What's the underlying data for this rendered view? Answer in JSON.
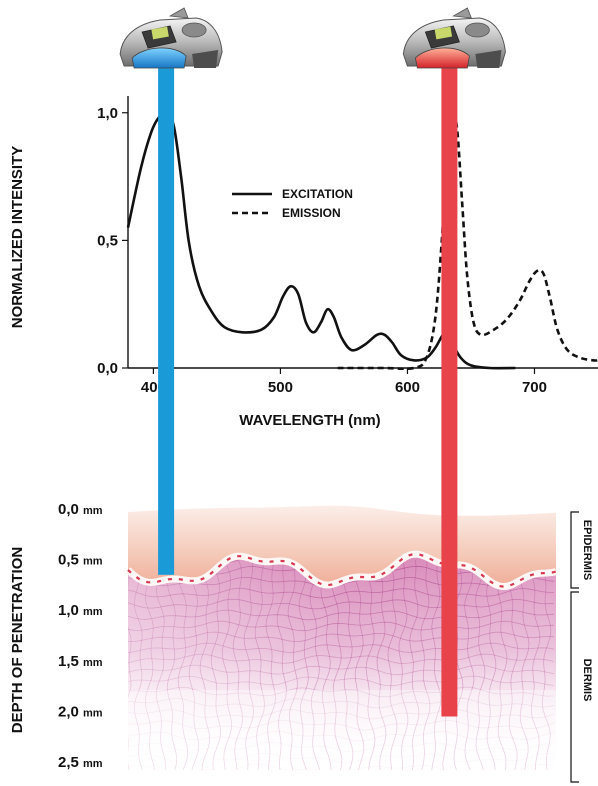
{
  "chart_data": [
    {
      "type": "line",
      "xlabel": "WAVELENGTH (nm)",
      "ylabel": "NORMALIZED INTENSITY",
      "xlim": [
        380,
        750
      ],
      "ylim": [
        0,
        1.05
      ],
      "x_ticks": [
        "400",
        "500",
        "600",
        "700"
      ],
      "y_ticks": [
        "0,0",
        "0,5",
        "1,0"
      ],
      "legend_position": "upper-middle",
      "series": [
        {
          "name": "EXCITATION",
          "style": "solid",
          "x": [
            380,
            390,
            398,
            404,
            410,
            416,
            422,
            428,
            436,
            446,
            456,
            470,
            485,
            495,
            502,
            508,
            514,
            520,
            526,
            532,
            537,
            542,
            548,
            556,
            566,
            576,
            582,
            588,
            595,
            605,
            615,
            622,
            628,
            632,
            636,
            642,
            650,
            665,
            685
          ],
          "y": [
            0.55,
            0.78,
            0.92,
            0.98,
            1.0,
            0.95,
            0.74,
            0.49,
            0.32,
            0.22,
            0.16,
            0.14,
            0.15,
            0.2,
            0.28,
            0.32,
            0.29,
            0.18,
            0.14,
            0.18,
            0.23,
            0.2,
            0.12,
            0.07,
            0.09,
            0.13,
            0.13,
            0.1,
            0.05,
            0.03,
            0.04,
            0.08,
            0.13,
            0.13,
            0.09,
            0.04,
            0.01,
            0.0,
            0.0
          ]
        },
        {
          "name": "EMISSION",
          "style": "dashed",
          "x": [
            545,
            580,
            605,
            615,
            622,
            627,
            631,
            635,
            639,
            643,
            647,
            652,
            658,
            668,
            678,
            688,
            696,
            702,
            707,
            712,
            718,
            726,
            736,
            746,
            750
          ],
          "y": [
            0.0,
            0.0,
            0.0,
            0.04,
            0.2,
            0.5,
            0.82,
            0.99,
            0.94,
            0.65,
            0.36,
            0.18,
            0.13,
            0.15,
            0.19,
            0.26,
            0.34,
            0.38,
            0.37,
            0.28,
            0.15,
            0.07,
            0.04,
            0.03,
            0.03
          ]
        }
      ],
      "highlight_bands": [
        {
          "name": "blue-light",
          "x": 410,
          "color": "#1a9ad7"
        },
        {
          "name": "red-light",
          "x": 633,
          "color": "#e8434a"
        }
      ]
    },
    {
      "type": "diagram",
      "ylabel": "DEPTH OF PENETRATION",
      "y_ticks": [
        {
          "value": "0,0",
          "unit": "mm",
          "depth": 0.0
        },
        {
          "value": "0,5",
          "unit": "mm",
          "depth": 0.5
        },
        {
          "value": "1,0",
          "unit": "mm",
          "depth": 1.0
        },
        {
          "value": "1,5",
          "unit": "mm",
          "depth": 1.5
        },
        {
          "value": "2,0",
          "unit": "mm",
          "depth": 2.0
        },
        {
          "value": "2,5",
          "unit": "mm",
          "depth": 2.5
        }
      ],
      "layers": [
        "EPIDERMIS",
        "DERMIS"
      ],
      "penetration": [
        {
          "name": "blue-light",
          "depth_mm": 0.65,
          "color": "#1a9ad7"
        },
        {
          "name": "red-light",
          "depth_mm": 2.05,
          "color": "#e8434a"
        }
      ]
    }
  ],
  "colors": {
    "blue": "#1a9ad7",
    "red": "#e8434a",
    "epidermis_top": "#f7dcd0",
    "epidermis_bottom": "#f2b9a4",
    "dermis": "#d57ab0",
    "grid_line": "#9c2f7c"
  },
  "icons": [
    "blue-light-device-icon",
    "red-light-device-icon"
  ]
}
